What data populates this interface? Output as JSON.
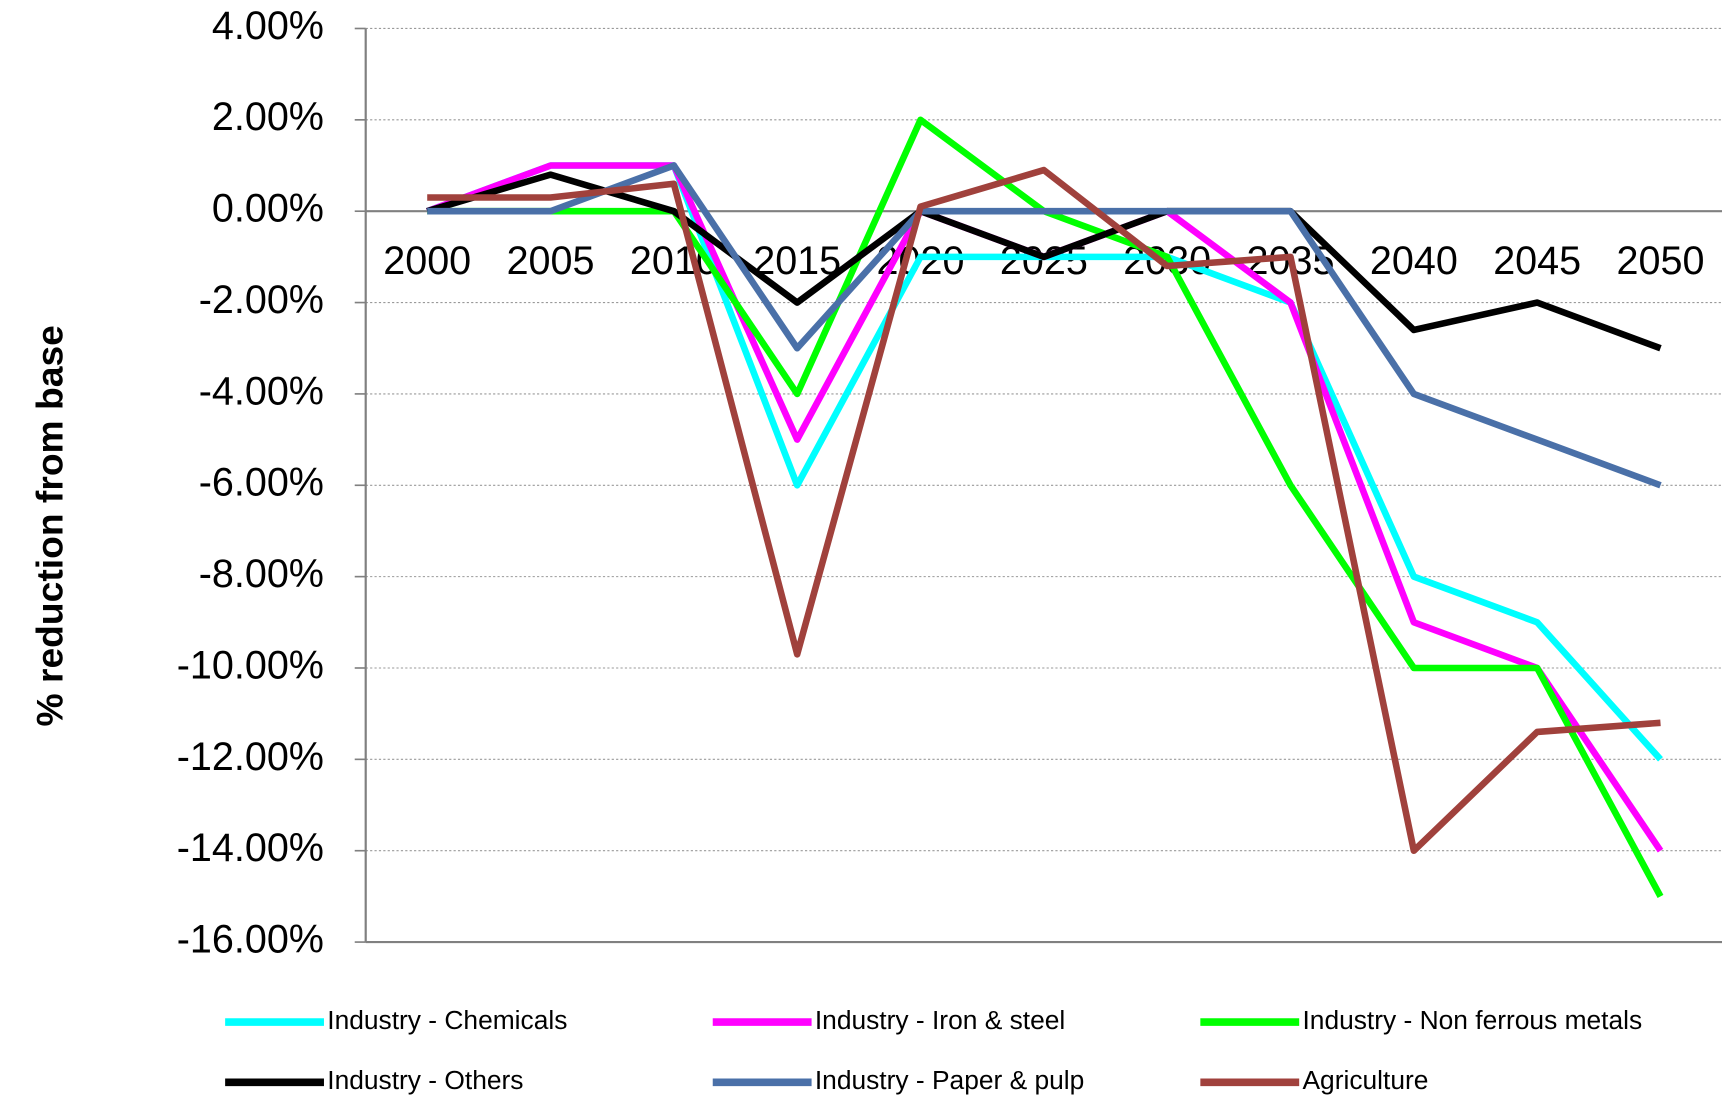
{
  "chart_data": {
    "type": "line",
    "y_label": "% reduction from base",
    "categories": [
      "2000",
      "2005",
      "2010",
      "2015",
      "2020",
      "2025",
      "2030",
      "2035",
      "2040",
      "2045",
      "2050"
    ],
    "ylim": [
      -16,
      4
    ],
    "yticks": [
      {
        "value": 4,
        "label": "4.00%"
      },
      {
        "value": 2,
        "label": "2.00%"
      },
      {
        "value": 0,
        "label": "0.00%"
      },
      {
        "value": -2,
        "label": "-2.00%"
      },
      {
        "value": -4,
        "label": "-4.00%"
      },
      {
        "value": -6,
        "label": "-6.00%"
      },
      {
        "value": -8,
        "label": "-8.00%"
      },
      {
        "value": -10,
        "label": "-10.00%"
      },
      {
        "value": -12,
        "label": "-12.00%"
      },
      {
        "value": -14,
        "label": "-14.00%"
      },
      {
        "value": -16,
        "label": "-16.00%"
      }
    ],
    "grid": true,
    "legend": "bottom",
    "series": [
      {
        "name": "Industry - Chemicals",
        "color": "#00ffff",
        "values": [
          0,
          1,
          1,
          -6,
          -1,
          -1,
          -1,
          -2,
          -8,
          -9,
          -12
        ]
      },
      {
        "name": "Industry - Iron & steel",
        "color": "#ff00ff",
        "values": [
          0,
          1,
          1,
          -5,
          0,
          -1,
          0,
          -2,
          -9,
          -10,
          -14
        ]
      },
      {
        "name": "Industry - Non ferrous metals",
        "color": "#00ff00",
        "values": [
          0,
          0,
          0,
          -4,
          2,
          0,
          -1,
          -6,
          -10,
          -10,
          -15
        ]
      },
      {
        "name": "Industry - Others",
        "color": "#000000",
        "values": [
          0,
          0.8,
          0,
          -2,
          0,
          -1,
          0,
          0,
          -2.6,
          -2,
          -3
        ]
      },
      {
        "name": "Industry - Paper & pulp",
        "color": "#4a70a8",
        "values": [
          0,
          0,
          1,
          -3,
          0,
          0,
          0,
          0,
          -4,
          -5,
          -6
        ]
      },
      {
        "name": "Agriculture",
        "color": "#a0413c",
        "values": [
          0.3,
          0.3,
          0.6,
          -9.7,
          0.1,
          0.9,
          -1.2,
          -1,
          -14,
          -11.4,
          -11.2
        ]
      }
    ]
  }
}
